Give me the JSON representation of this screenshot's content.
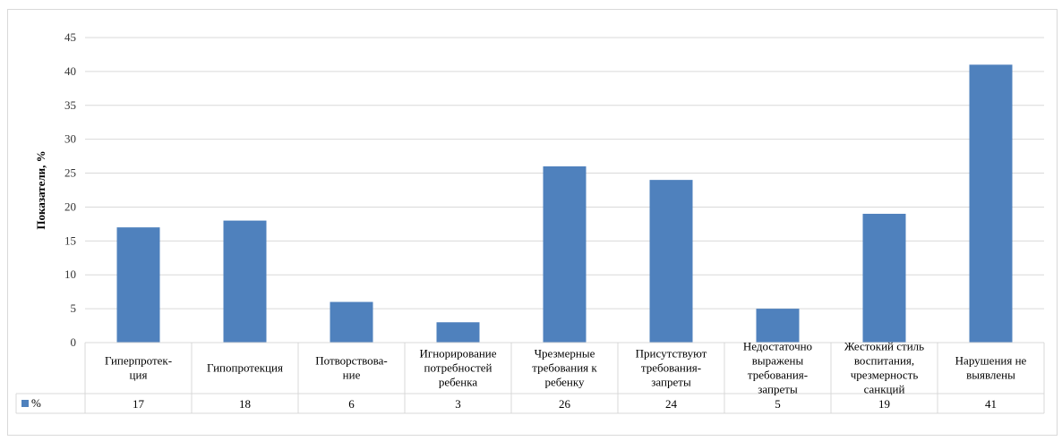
{
  "chart_data": {
    "type": "bar",
    "title": "",
    "xlabel": "",
    "ylabel": "Показатели, %",
    "ylim": [
      0,
      45
    ],
    "yticks": [
      0,
      5,
      10,
      15,
      20,
      25,
      30,
      35,
      40,
      45
    ],
    "grid": true,
    "legend": "bottom-left (data table)",
    "categories": [
      [
        "Гиперпротек-",
        "ция"
      ],
      [
        "Гипопротекция"
      ],
      [
        "Потворствова-",
        "ние"
      ],
      [
        "Игнорирование",
        "потребностей",
        "ребенка"
      ],
      [
        "Чрезмерные",
        "требования к",
        "ребенку"
      ],
      [
        "Присутствуют",
        "требования-",
        "запреты"
      ],
      [
        "Недостаточно",
        "выражены",
        "требования-",
        "запреты"
      ],
      [
        "Жестокий стиль",
        "воспитания,",
        "чрезмерность",
        "санкций"
      ],
      [
        "Нарушения не",
        "выявлены"
      ]
    ],
    "series": [
      {
        "name": "%",
        "color": "#4f81bd",
        "values": [
          17,
          18,
          6,
          3,
          26,
          24,
          5,
          19,
          41
        ]
      }
    ]
  }
}
